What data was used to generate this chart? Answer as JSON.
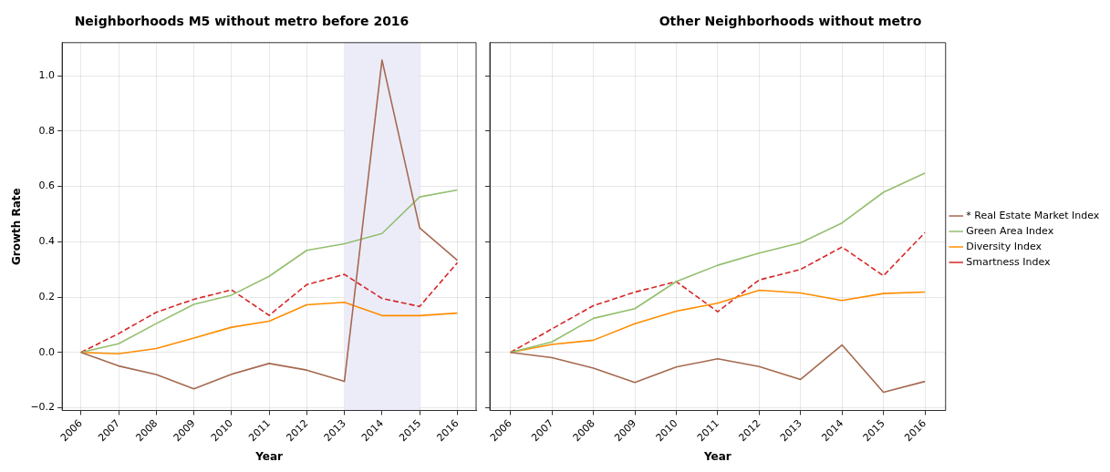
{
  "chart_data": [
    {
      "type": "line",
      "title": "Neighborhoods M5 without metro before 2016",
      "xlabel": "Year",
      "ylabel": "Growth Rate",
      "categories": [
        "2006",
        "2007",
        "2008",
        "2009",
        "2010",
        "2011",
        "2012",
        "2013",
        "2014",
        "2015",
        "2016"
      ],
      "ylim": [
        -0.21,
        1.12
      ],
      "yticks": [
        {
          "value": -0.2,
          "label": "−0.2"
        },
        {
          "value": 0,
          "label": "0.0"
        },
        0.2,
        0.4,
        0.6,
        0.8,
        {
          "value": 1,
          "label": "1.0"
        }
      ],
      "grid": true,
      "marker": "none",
      "bands": [
        {
          "axis": "x",
          "from": "2013",
          "to": "2015",
          "color": "#ececf9"
        }
      ],
      "series": [
        {
          "color": "#a5694f",
          "values": [
            0,
            -0.049,
            -0.08,
            -0.132,
            -0.079,
            -0.04,
            -0.064,
            -0.105,
            1.057,
            0.45,
            0.333
          ]
        },
        {
          "color": "#93bf6f",
          "values": [
            0,
            0.031,
            0.104,
            0.174,
            0.207,
            0.275,
            0.369,
            0.393,
            0.43,
            0.562,
            0.587
          ]
        },
        {
          "color": "#ff8c00",
          "values": [
            0,
            -0.005,
            0.014,
            0.052,
            0.091,
            0.113,
            0.172,
            0.181,
            0.133,
            0.133,
            0.142
          ]
        },
        {
          "color": "#d62728",
          "line_style": "dashed",
          "values": [
            0,
            0.068,
            0.145,
            0.192,
            0.226,
            0.134,
            0.245,
            0.282,
            0.195,
            0.166,
            0.324
          ]
        }
      ]
    },
    {
      "type": "line",
      "title": "Other Neighborhoods without metro",
      "xlabel": "Year",
      "categories": [
        "2006",
        "2007",
        "2008",
        "2009",
        "2010",
        "2011",
        "2012",
        "2013",
        "2014",
        "2015",
        "2016"
      ],
      "ylim": [
        -0.21,
        1.12
      ],
      "yticks": [
        -0.2,
        0,
        0.2,
        0.4,
        0.6,
        0.8,
        1
      ],
      "tick_labels": "x",
      "grid": true,
      "marker": "none",
      "legend": "right",
      "series": [
        {
          "name": "* Real Estate Market Index",
          "color": "#a5694f",
          "values": [
            0,
            -0.019,
            -0.057,
            -0.109,
            -0.053,
            -0.023,
            -0.051,
            -0.098,
            0.027,
            -0.144,
            -0.105
          ]
        },
        {
          "name": "Green Area Index",
          "color": "#93bf6f",
          "values": [
            0,
            0.038,
            0.123,
            0.158,
            0.256,
            0.315,
            0.359,
            0.396,
            0.468,
            0.579,
            0.648
          ]
        },
        {
          "name": "Diversity Index",
          "color": "#ff8c00",
          "values": [
            0,
            0.029,
            0.044,
            0.104,
            0.149,
            0.178,
            0.225,
            0.215,
            0.188,
            0.213,
            0.218
          ]
        },
        {
          "name": "Smartness Index",
          "color": "#d62728",
          "line_style": "dashed",
          "values": [
            0,
            0.085,
            0.169,
            0.218,
            0.256,
            0.147,
            0.262,
            0.3,
            0.381,
            0.277,
            0.433
          ]
        }
      ]
    }
  ]
}
